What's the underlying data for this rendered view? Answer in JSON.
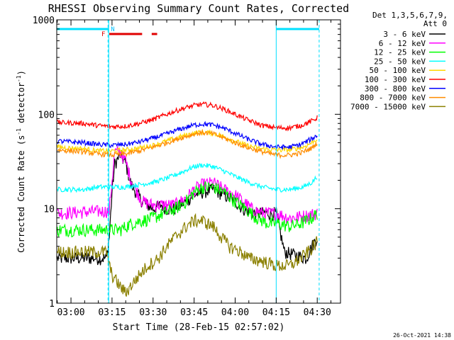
{
  "chart_data": {
    "type": "line",
    "title": "RHESSI Observing Summary Count Rates, Corrected",
    "xlabel": "Start Time (28-Feb-15 02:57:02)",
    "ylabel_main": "Corrected Count Rate (s",
    "ylabel_sup1": "-1",
    "ylabel_mid": " detector",
    "ylabel_sup2": "-1",
    "ylabel_end": ")",
    "y_scale": "log",
    "ylim": [
      1,
      1000
    ],
    "xlim_minutes": [
      -5.2,
      98.5
    ],
    "x_ticks": [
      {
        "label": "03:00",
        "m": 0
      },
      {
        "label": "03:15",
        "m": 15
      },
      {
        "label": "03:30",
        "m": 30
      },
      {
        "label": "03:45",
        "m": 45
      },
      {
        "label": "04:00",
        "m": 60
      },
      {
        "label": "04:15",
        "m": 75
      },
      {
        "label": "04:30",
        "m": 90
      }
    ],
    "y_ticks": [
      {
        "label": "1",
        "v": 1
      },
      {
        "label": "10",
        "v": 10
      },
      {
        "label": "100",
        "v": 100
      },
      {
        "label": "1000",
        "v": 1000
      }
    ],
    "legend_header": [
      "Det 1,3,5,6,7,9,",
      "Att 0"
    ],
    "legend_position": "right",
    "series": [
      {
        "name": "3 - 6 keV",
        "color": "#000000",
        "points": [
          [
            -5,
            3
          ],
          [
            13,
            3
          ],
          [
            14,
            5
          ],
          [
            15,
            15
          ],
          [
            16,
            30
          ],
          [
            18,
            37
          ],
          [
            20,
            30
          ],
          [
            22,
            18
          ],
          [
            26,
            12
          ],
          [
            30,
            10
          ],
          [
            33,
            11
          ],
          [
            35,
            10
          ],
          [
            38,
            10
          ],
          [
            42,
            12
          ],
          [
            45,
            14
          ],
          [
            48,
            15
          ],
          [
            52,
            16
          ],
          [
            56,
            14
          ],
          [
            60,
            12
          ],
          [
            63,
            10
          ],
          [
            66,
            9
          ],
          [
            70,
            9
          ],
          [
            75,
            9
          ],
          [
            78,
            3.5
          ],
          [
            86,
            3
          ],
          [
            88,
            4
          ],
          [
            90,
            5
          ]
        ]
      },
      {
        "name": "6 - 12 keV",
        "color": "#ff00ff",
        "points": [
          [
            -5,
            9
          ],
          [
            14,
            9.5
          ],
          [
            15,
            20
          ],
          [
            16,
            40
          ],
          [
            18,
            40
          ],
          [
            20,
            32
          ],
          [
            22,
            20
          ],
          [
            26,
            12
          ],
          [
            30,
            11
          ],
          [
            34,
            11
          ],
          [
            38,
            11
          ],
          [
            42,
            13
          ],
          [
            45,
            16
          ],
          [
            48,
            18
          ],
          [
            52,
            19
          ],
          [
            56,
            16
          ],
          [
            60,
            14
          ],
          [
            63,
            12
          ],
          [
            66,
            10
          ],
          [
            70,
            9
          ],
          [
            75,
            9
          ],
          [
            80,
            8
          ],
          [
            86,
            8.5
          ],
          [
            90,
            9
          ]
        ]
      },
      {
        "name": "12 - 25 keV",
        "color": "#00ff00",
        "points": [
          [
            -5,
            6
          ],
          [
            10,
            6
          ],
          [
            14,
            6
          ],
          [
            18,
            6
          ],
          [
            22,
            7
          ],
          [
            26,
            7.5
          ],
          [
            30,
            8
          ],
          [
            34,
            9
          ],
          [
            38,
            10
          ],
          [
            42,
            12
          ],
          [
            45,
            15
          ],
          [
            48,
            17
          ],
          [
            52,
            17
          ],
          [
            56,
            15
          ],
          [
            60,
            12
          ],
          [
            64,
            10
          ],
          [
            68,
            8
          ],
          [
            72,
            7
          ],
          [
            76,
            7
          ],
          [
            80,
            6.5
          ],
          [
            84,
            7
          ],
          [
            88,
            8
          ],
          [
            90,
            9
          ]
        ]
      },
      {
        "name": "25 - 50 keV",
        "color": "#00ffff",
        "points": [
          [
            -5,
            16
          ],
          [
            5,
            16
          ],
          [
            10,
            17
          ],
          [
            15,
            17
          ],
          [
            20,
            17
          ],
          [
            25,
            18
          ],
          [
            30,
            19
          ],
          [
            35,
            21
          ],
          [
            40,
            24
          ],
          [
            45,
            28
          ],
          [
            48,
            29
          ],
          [
            52,
            28
          ],
          [
            56,
            25
          ],
          [
            60,
            22
          ],
          [
            65,
            19
          ],
          [
            70,
            17
          ],
          [
            75,
            16
          ],
          [
            80,
            16
          ],
          [
            85,
            17
          ],
          [
            88,
            19
          ],
          [
            90,
            22
          ]
        ]
      },
      {
        "name": "50 - 100 keV",
        "color": "#ffd700",
        "points": [
          [
            -5,
            45
          ],
          [
            5,
            43
          ],
          [
            10,
            41
          ],
          [
            15,
            41
          ],
          [
            20,
            42
          ],
          [
            25,
            44
          ],
          [
            30,
            47
          ],
          [
            35,
            52
          ],
          [
            40,
            58
          ],
          [
            45,
            63
          ],
          [
            48,
            65
          ],
          [
            52,
            63
          ],
          [
            56,
            58
          ],
          [
            60,
            52
          ],
          [
            65,
            46
          ],
          [
            70,
            43
          ],
          [
            75,
            42
          ],
          [
            80,
            42
          ],
          [
            85,
            45
          ],
          [
            88,
            50
          ],
          [
            90,
            55
          ]
        ]
      },
      {
        "name": "100 - 300 keV",
        "color": "#ff0000",
        "points": [
          [
            -5,
            82
          ],
          [
            5,
            80
          ],
          [
            10,
            76
          ],
          [
            15,
            74
          ],
          [
            20,
            75
          ],
          [
            25,
            80
          ],
          [
            30,
            88
          ],
          [
            35,
            100
          ],
          [
            40,
            113
          ],
          [
            45,
            124
          ],
          [
            48,
            128
          ],
          [
            52,
            124
          ],
          [
            56,
            113
          ],
          [
            60,
            100
          ],
          [
            65,
            86
          ],
          [
            70,
            76
          ],
          [
            75,
            72
          ],
          [
            80,
            72
          ],
          [
            84,
            76
          ],
          [
            88,
            85
          ],
          [
            90,
            92
          ]
        ]
      },
      {
        "name": "300 - 800 keV",
        "color": "#0000ff",
        "points": [
          [
            -5,
            52
          ],
          [
            5,
            50
          ],
          [
            10,
            48
          ],
          [
            15,
            47
          ],
          [
            20,
            48
          ],
          [
            25,
            51
          ],
          [
            30,
            56
          ],
          [
            35,
            62
          ],
          [
            40,
            70
          ],
          [
            45,
            77
          ],
          [
            48,
            79
          ],
          [
            52,
            77
          ],
          [
            56,
            71
          ],
          [
            60,
            63
          ],
          [
            65,
            54
          ],
          [
            70,
            48
          ],
          [
            75,
            45
          ],
          [
            80,
            45
          ],
          [
            84,
            48
          ],
          [
            88,
            55
          ],
          [
            90,
            60
          ]
        ]
      },
      {
        "name": "800 - 7000 keV",
        "color": "#ff8c00",
        "points": [
          [
            -5,
            42
          ],
          [
            5,
            40
          ],
          [
            10,
            38
          ],
          [
            15,
            37
          ],
          [
            20,
            38
          ],
          [
            25,
            41
          ],
          [
            30,
            45
          ],
          [
            35,
            50
          ],
          [
            40,
            56
          ],
          [
            45,
            62
          ],
          [
            48,
            64
          ],
          [
            52,
            62
          ],
          [
            56,
            56
          ],
          [
            60,
            50
          ],
          [
            65,
            44
          ],
          [
            70,
            40
          ],
          [
            75,
            37
          ],
          [
            80,
            37
          ],
          [
            84,
            39
          ],
          [
            88,
            44
          ],
          [
            90,
            50
          ]
        ]
      },
      {
        "name": "7000 - 15000 keV",
        "color": "#8b8000",
        "points": [
          [
            -5,
            3.5
          ],
          [
            13,
            3.5
          ],
          [
            14,
            2.5
          ],
          [
            15,
            2
          ],
          [
            18,
            1.5
          ],
          [
            20,
            1.3
          ],
          [
            25,
            2
          ],
          [
            28,
            2.5
          ],
          [
            32,
            3
          ],
          [
            35,
            4
          ],
          [
            38,
            5
          ],
          [
            42,
            6.5
          ],
          [
            45,
            7.5
          ],
          [
            48,
            7.5
          ],
          [
            52,
            6.5
          ],
          [
            55,
            5
          ],
          [
            58,
            4
          ],
          [
            62,
            3.5
          ],
          [
            65,
            3
          ],
          [
            70,
            2.8
          ],
          [
            75,
            2.5
          ],
          [
            80,
            2.5
          ],
          [
            84,
            3
          ],
          [
            88,
            3.8
          ],
          [
            90,
            4.5
          ]
        ]
      }
    ],
    "annotations": {
      "F_label": "F",
      "N_label": "N",
      "flare_bars": [
        [
          14.0,
          26.0
        ],
        [
          29.5,
          31.5
        ]
      ],
      "night_bars": [
        [
          -5.2,
          13.8
        ],
        [
          75.0,
          90.7
        ]
      ],
      "day_lines": [
        13.8,
        75.0
      ],
      "night_edges": [
        13.8,
        90.7
      ]
    },
    "timestamp": "26-Oct-2021 14:38"
  }
}
